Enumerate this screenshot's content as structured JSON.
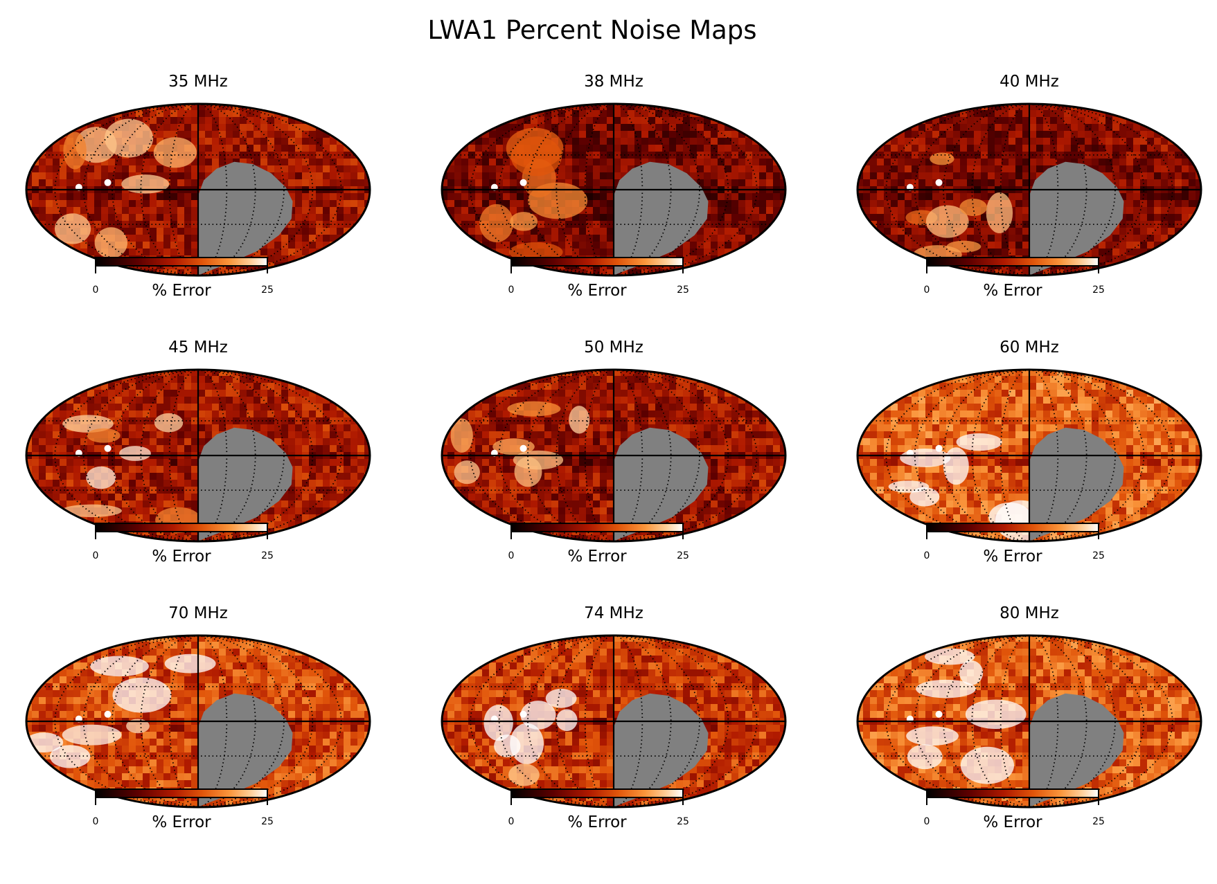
{
  "chart_data": {
    "type": "heatmap",
    "title": "LWA1 Percent Noise Maps",
    "projection": "mollweide",
    "graticule": "dotted",
    "masked_region_color": "#808080",
    "colormap": "gist_heat",
    "colorbar": {
      "label": "% Error",
      "min": 0,
      "max": 25,
      "orientation": "horizontal",
      "placement": "below each map"
    },
    "panels": [
      {
        "title": "35 MHz",
        "frequency_mhz": 35,
        "typical_error_level": 0.35,
        "cbar_min": "0",
        "cbar_max": "25",
        "cbar_label": "% Error"
      },
      {
        "title": "38 MHz",
        "frequency_mhz": 38,
        "typical_error_level": 0.25,
        "cbar_min": "0",
        "cbar_max": "25",
        "cbar_label": "% Error"
      },
      {
        "title": "40 MHz",
        "frequency_mhz": 40,
        "typical_error_level": 0.27,
        "cbar_min": "0",
        "cbar_max": "25",
        "cbar_label": "% Error"
      },
      {
        "title": "45 MHz",
        "frequency_mhz": 45,
        "typical_error_level": 0.38,
        "cbar_min": "0",
        "cbar_max": "25",
        "cbar_label": "% Error"
      },
      {
        "title": "50 MHz",
        "frequency_mhz": 50,
        "typical_error_level": 0.35,
        "cbar_min": "0",
        "cbar_max": "25",
        "cbar_label": "% Error"
      },
      {
        "title": "60 MHz",
        "frequency_mhz": 60,
        "typical_error_level": 0.62,
        "cbar_min": "0",
        "cbar_max": "25",
        "cbar_label": "% Error"
      },
      {
        "title": "70 MHz",
        "frequency_mhz": 70,
        "typical_error_level": 0.55,
        "cbar_min": "0",
        "cbar_max": "25",
        "cbar_label": "% Error"
      },
      {
        "title": "74 MHz",
        "frequency_mhz": 74,
        "typical_error_level": 0.5,
        "cbar_min": "0",
        "cbar_max": "25",
        "cbar_label": "% Error"
      },
      {
        "title": "80 MHz",
        "frequency_mhz": 80,
        "typical_error_level": 0.6,
        "cbar_min": "0",
        "cbar_max": "25",
        "cbar_label": "% Error"
      }
    ]
  }
}
